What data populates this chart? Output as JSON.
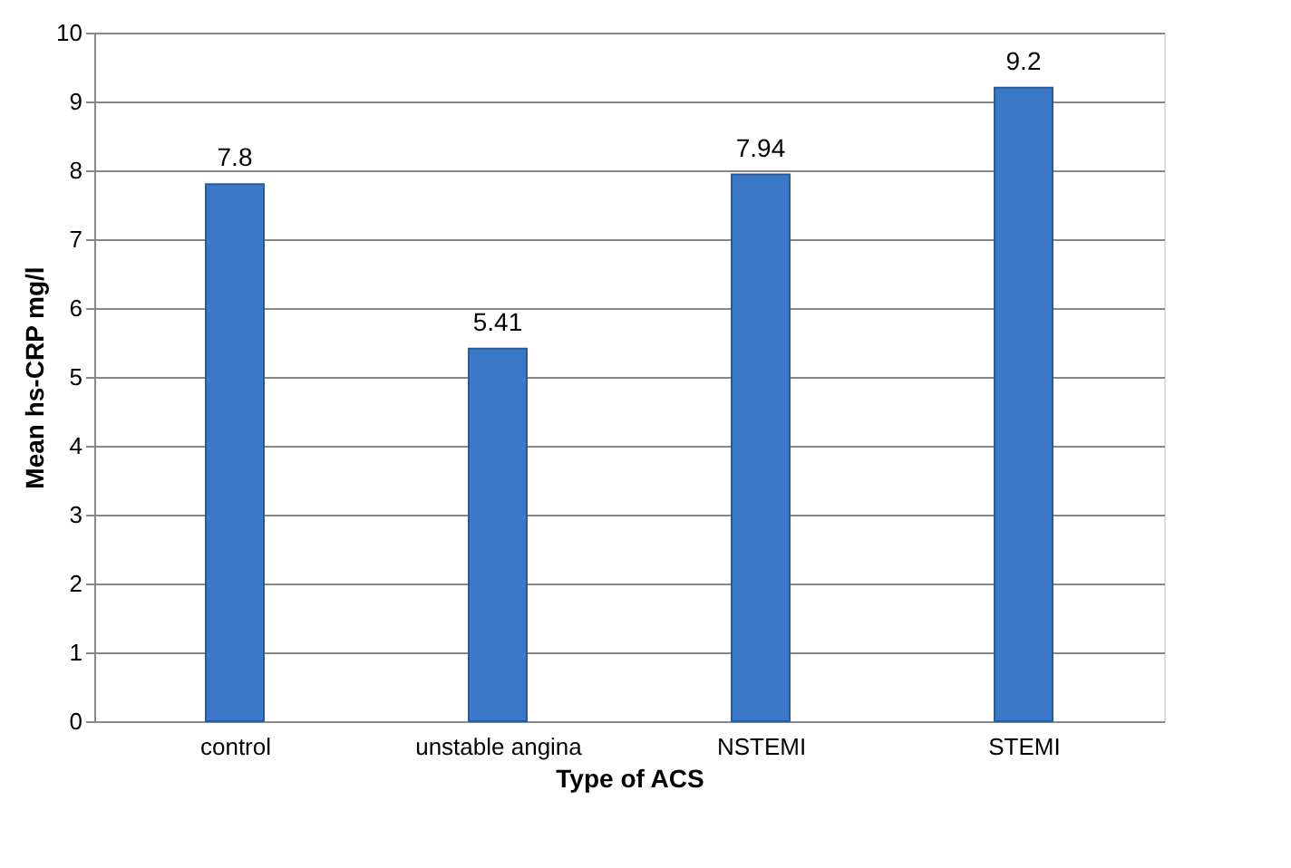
{
  "chart_data": {
    "type": "bar",
    "xlabel": "Type of ACS",
    "ylabel": "Mean hs-CRP mg/l",
    "categories": [
      "control",
      "unstable angina",
      "NSTEMI",
      "STEMI"
    ],
    "values": [
      7.8,
      5.41,
      7.94,
      9.2
    ],
    "color": "#3b78c8",
    "ylim": [
      0,
      10
    ],
    "yticks": [
      0,
      1,
      2,
      3,
      4,
      5,
      6,
      7,
      8,
      9,
      10
    ],
    "grid": "y",
    "data_labels": true
  }
}
